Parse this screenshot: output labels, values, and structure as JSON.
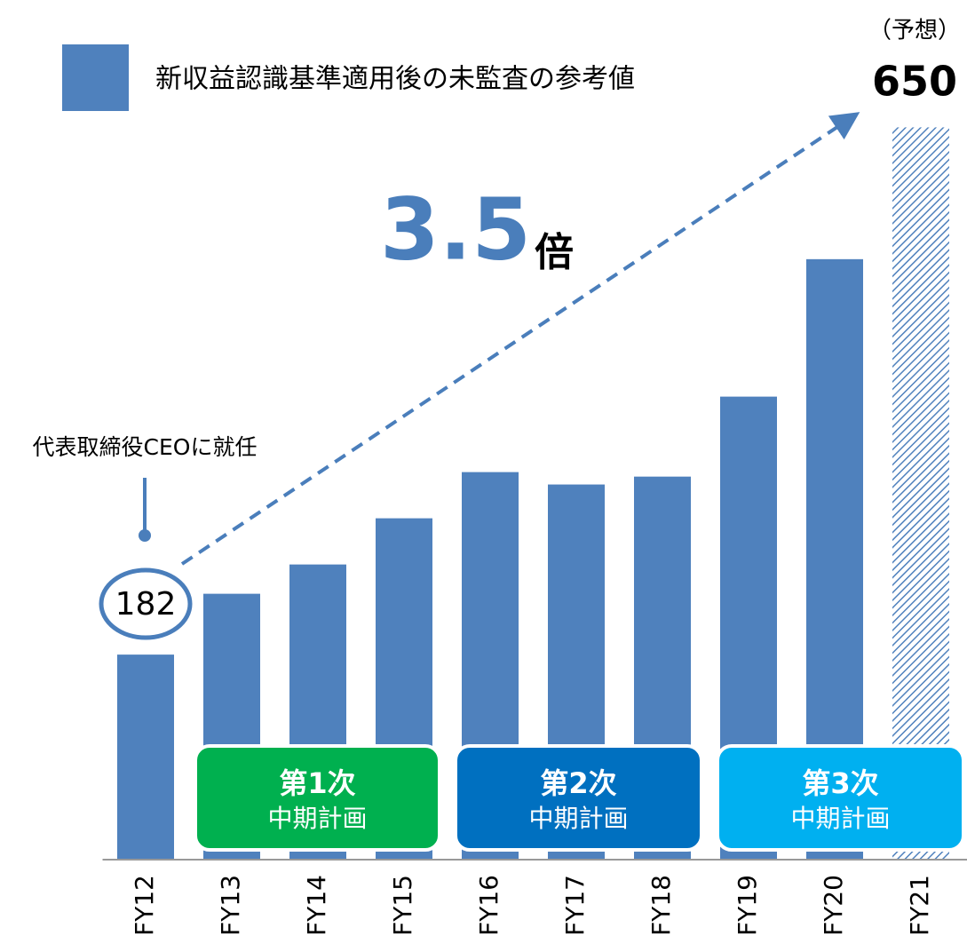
{
  "chart_data": {
    "type": "bar",
    "categories": [
      "FY12",
      "FY13",
      "FY14",
      "FY15",
      "FY16",
      "FY17",
      "FY18",
      "FY19",
      "FY20",
      "FY21"
    ],
    "series": [
      {
        "name": "新収益認識基準適用後の未監査の参考値",
        "color": "#4f81bd",
        "values": [
          182,
          236,
          262,
          303,
          344,
          333,
          340,
          411,
          533,
          650
        ]
      }
    ],
    "ylim": [
      0,
      700
    ],
    "hatched_index": 9,
    "forecast_label": "（予想）",
    "growth_label": "3.5",
    "growth_unit": "倍",
    "ceo_note": "代表取締役CEOに就任",
    "plans": [
      {
        "title": "第1次",
        "subtitle": "中期計画",
        "color": "#00b04f"
      },
      {
        "title": "第2次",
        "subtitle": "中期計画",
        "color": "#0070c0"
      },
      {
        "title": "第3次",
        "subtitle": "中期計画",
        "color": "#00b0f0"
      }
    ]
  }
}
